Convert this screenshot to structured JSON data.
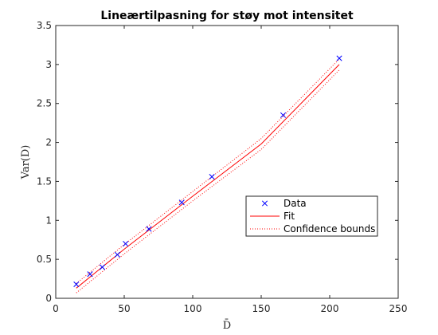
{
  "chart_data": {
    "type": "scatter",
    "title": "Lineærtilpasning for støy mot intensitet",
    "xlabel": "D̄",
    "ylabel": "Var(D)",
    "xlim": [
      0,
      250
    ],
    "ylim": [
      0,
      3.5
    ],
    "xticks": [
      0,
      50,
      100,
      150,
      200,
      250
    ],
    "yticks": [
      0,
      0.5,
      1,
      1.5,
      2,
      2.5,
      3,
      3.5
    ],
    "xtick_labels": [
      "0",
      "50",
      "100",
      "150",
      "200",
      "250"
    ],
    "ytick_labels": [
      "0",
      "0.5",
      "1",
      "1.5",
      "2",
      "2.5",
      "3",
      "3.5"
    ],
    "grid": false,
    "legend_position": "center-right",
    "series": [
      {
        "name": "Data",
        "kind": "scatter",
        "marker": "x",
        "color": "#0000ff",
        "x": [
          15,
          25,
          34,
          45,
          51,
          68,
          92,
          114,
          166,
          207
        ],
        "y": [
          0.18,
          0.31,
          0.4,
          0.56,
          0.7,
          0.89,
          1.23,
          1.56,
          2.35,
          3.08
        ]
      },
      {
        "name": "Fit",
        "kind": "line",
        "color": "#ff0000",
        "x": [
          15,
          50,
          100,
          150,
          207
        ],
        "y": [
          0.13,
          0.63,
          1.31,
          1.98,
          3.0
        ]
      },
      {
        "name": "Confidence bounds",
        "kind": "dotted-pair",
        "color": "#ff0000",
        "x": [
          15,
          50,
          100,
          150,
          207
        ],
        "upper": [
          0.19,
          0.69,
          1.37,
          2.05,
          3.07
        ],
        "lower": [
          0.07,
          0.57,
          1.25,
          1.91,
          2.93
        ]
      }
    ]
  }
}
